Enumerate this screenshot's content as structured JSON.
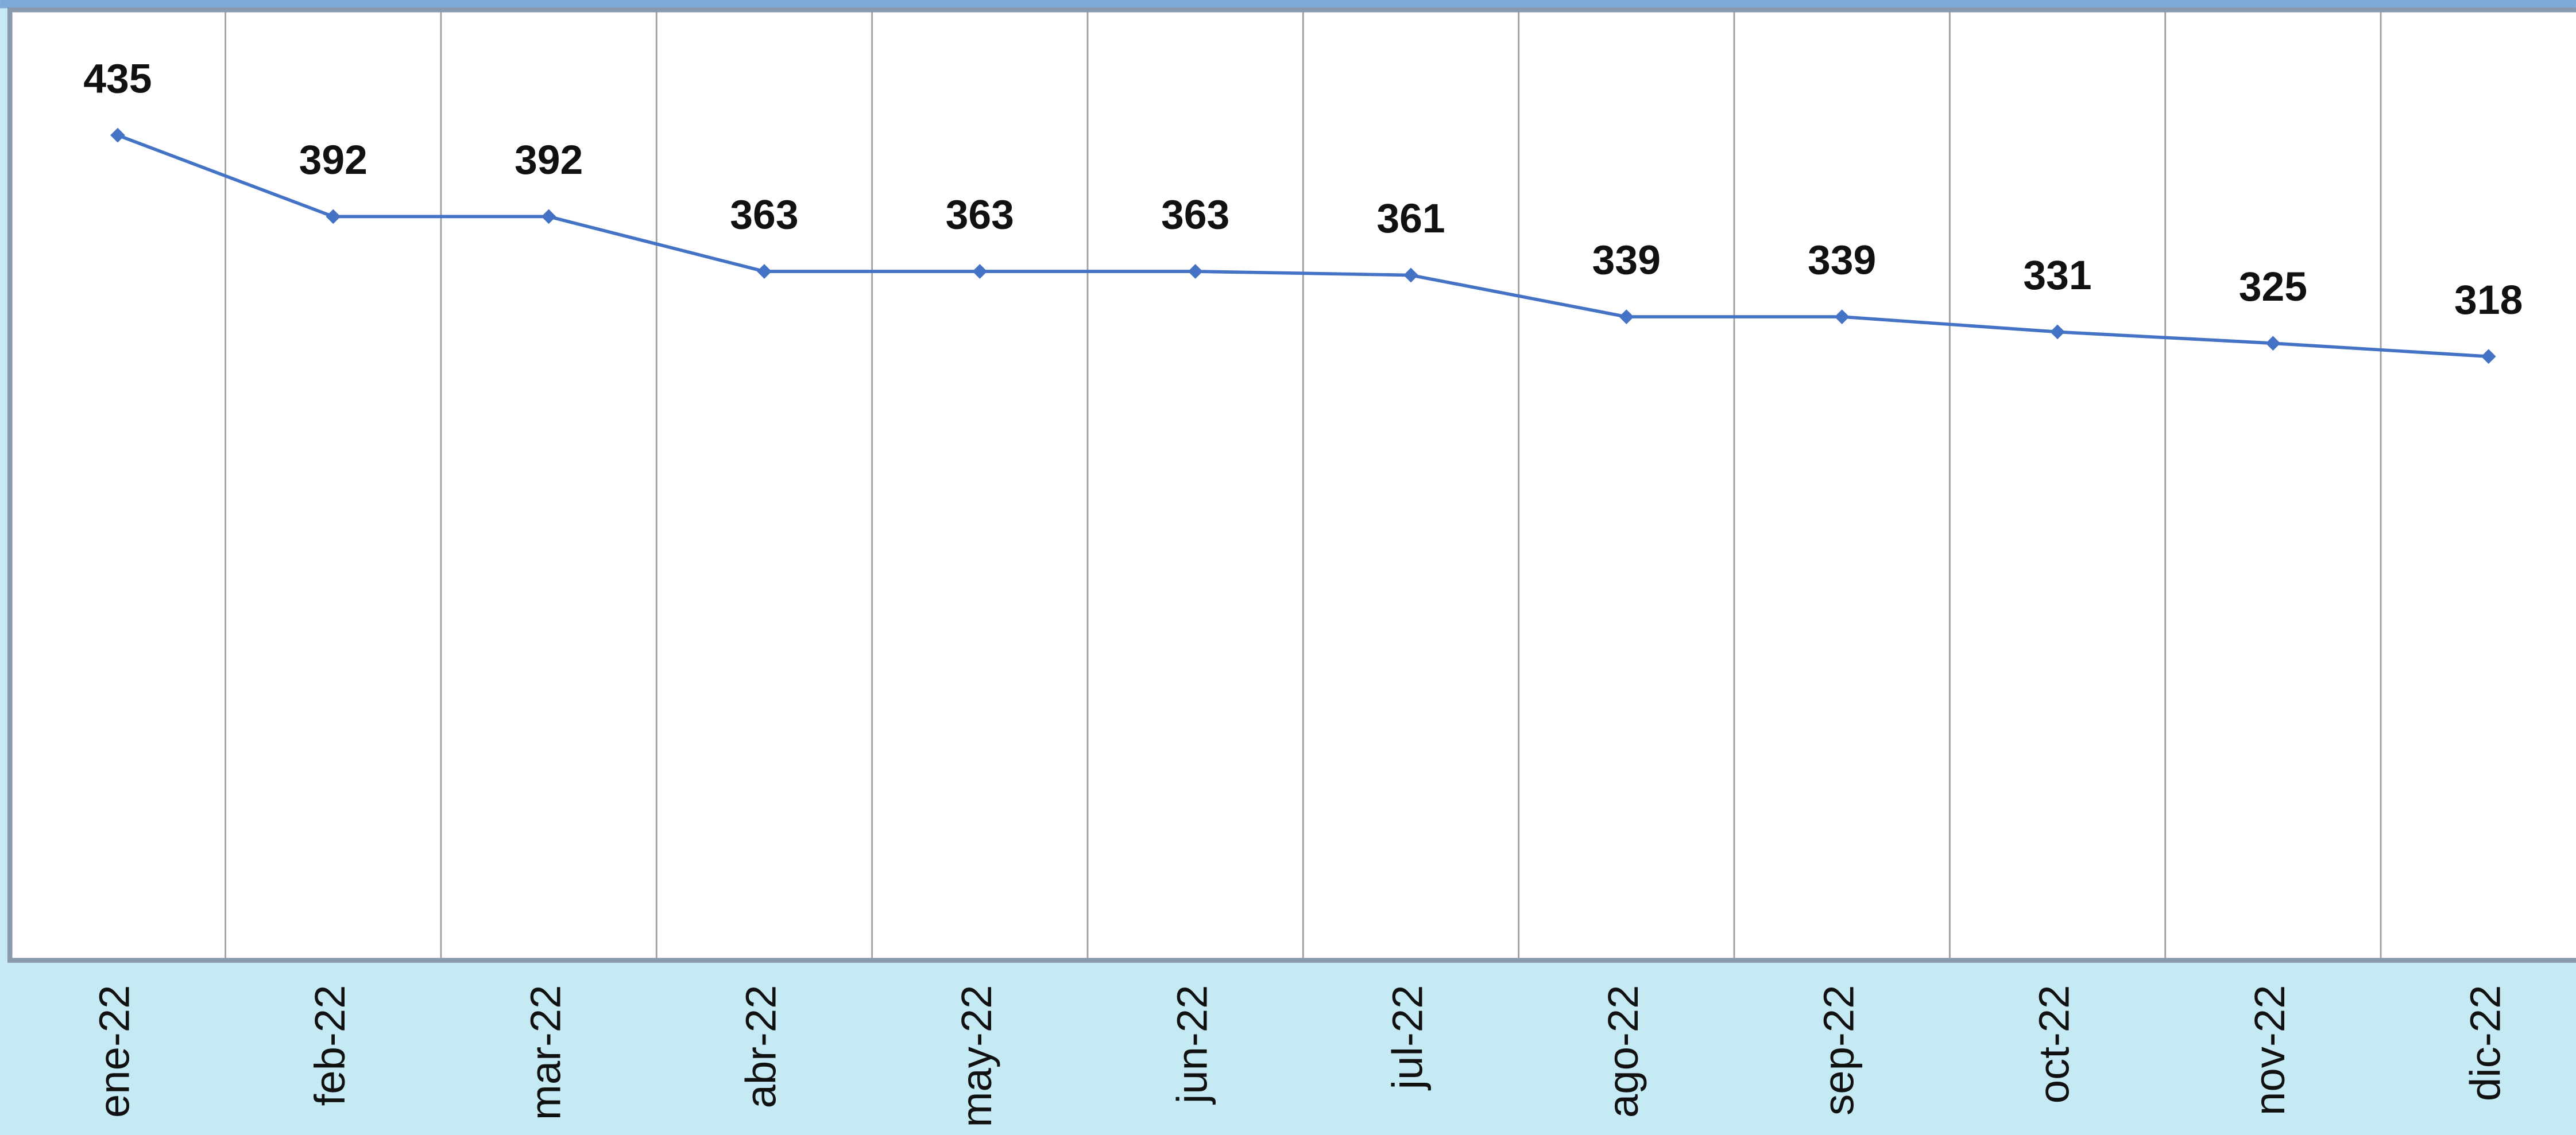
{
  "chart_data": {
    "type": "line",
    "categories": [
      "ene-22",
      "feb-22",
      "mar-22",
      "abr-22",
      "may-22",
      "jun-22",
      "jul-22",
      "ago-22",
      "sep-22",
      "oct-22",
      "nov-22",
      "dic-22"
    ],
    "values": [
      435,
      392,
      392,
      363,
      363,
      363,
      361,
      339,
      339,
      331,
      325,
      318
    ],
    "color": "#4472c4",
    "ylim": [
      0,
      500
    ],
    "grid": true
  }
}
